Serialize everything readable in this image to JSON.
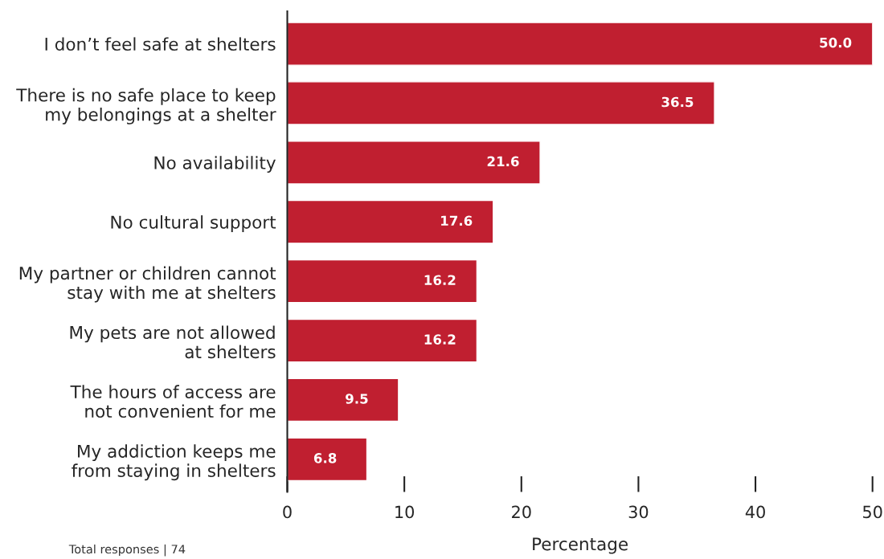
{
  "chart_data": {
    "type": "bar",
    "orientation": "horizontal",
    "xlabel": "Percentage",
    "categories": [
      "I don’t feel safe at shelters",
      "There is no safe place to keep\nmy belongings at a shelter",
      "No availability",
      "No cultural support",
      "My partner or children cannot\nstay with me at shelters",
      "My pets are not allowed\nat shelters",
      "The hours of access are\nnot convenient for me",
      "My addiction keeps me\nfrom staying in shelters"
    ],
    "values": [
      50.0,
      36.5,
      21.6,
      17.6,
      16.2,
      16.2,
      9.5,
      6.8
    ],
    "value_labels": [
      "50.0",
      "36.5",
      "21.6",
      "17.6",
      "16.2",
      "16.2",
      "9.5",
      "6.8"
    ],
    "color": "#c01f30",
    "xlim": [
      0,
      50
    ],
    "xticks": [
      0,
      10,
      20,
      30,
      40,
      50
    ],
    "grid": false,
    "legend": false,
    "annotations": [
      "Total responses | 74"
    ]
  }
}
